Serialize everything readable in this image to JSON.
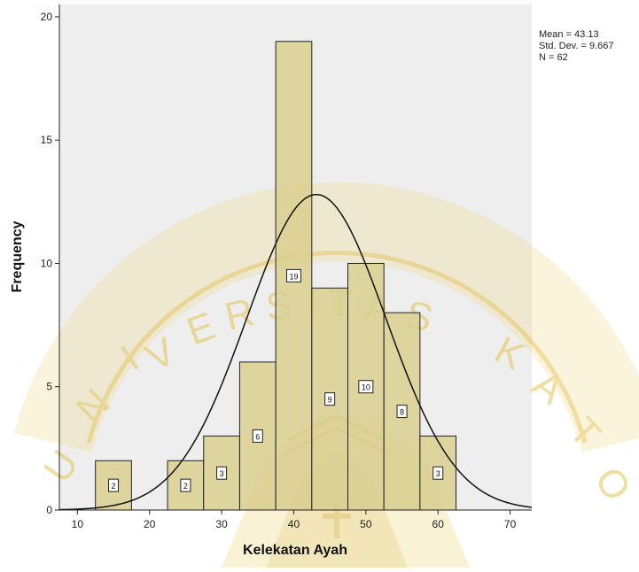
{
  "chart_data": {
    "type": "bar",
    "subtype": "histogram",
    "xlabel": "Kelekatan Ayah",
    "ylabel": "Frequency",
    "xlim": [
      7.5,
      73
    ],
    "ylim": [
      0,
      20.5
    ],
    "x_ticks": [
      10,
      20,
      30,
      40,
      50,
      60,
      70
    ],
    "y_ticks": [
      0,
      5,
      10,
      15,
      20
    ],
    "bins": [
      {
        "start": 12.5,
        "end": 17.5,
        "value": 2
      },
      {
        "start": 22.5,
        "end": 27.5,
        "value": 2
      },
      {
        "start": 27.5,
        "end": 32.5,
        "value": 3
      },
      {
        "start": 32.5,
        "end": 37.5,
        "value": 6
      },
      {
        "start": 37.5,
        "end": 42.5,
        "value": 19
      },
      {
        "start": 42.5,
        "end": 47.5,
        "value": 9
      },
      {
        "start": 47.5,
        "end": 52.5,
        "value": 10
      },
      {
        "start": 52.5,
        "end": 57.5,
        "value": 8
      },
      {
        "start": 57.5,
        "end": 62.5,
        "value": 3
      }
    ],
    "data_labels": [
      "2",
      "2",
      "3",
      "6",
      "19",
      "9",
      "10",
      "8",
      "3"
    ],
    "normal_curve": {
      "mean": 43.13,
      "sd": 9.667,
      "n": 62,
      "bin_width": 5
    },
    "stats_text": [
      "Mean = 43.13",
      "Std. Dev. = 9.667",
      "N = 62"
    ],
    "grid": false,
    "legend": "none",
    "colors": {
      "bar_fill": "#d9cf8f",
      "bar_stroke": "#222222",
      "plot_background": "#eeeeee",
      "curve": "#111111",
      "watermark": "#e8c85a"
    }
  }
}
